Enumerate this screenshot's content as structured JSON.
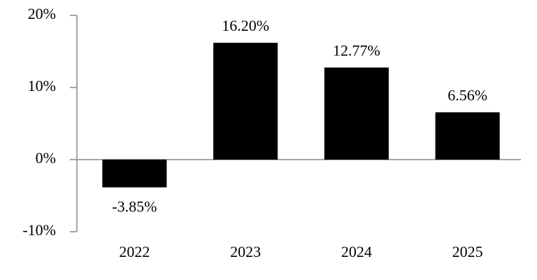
{
  "chart_data": {
    "type": "bar",
    "categories": [
      "2022",
      "2023",
      "2024",
      "2025"
    ],
    "values": [
      -3.85,
      16.2,
      12.77,
      6.56
    ],
    "value_labels": [
      "-3.85%",
      "16.20%",
      "12.77%",
      "6.56%"
    ],
    "color": "#000000",
    "ylim": [
      -10,
      20
    ],
    "yticks": [
      {
        "value": -10,
        "label": "-10%"
      },
      {
        "value": 0,
        "label": "0%"
      },
      {
        "value": 10,
        "label": "10%"
      },
      {
        "value": 20,
        "label": "20%"
      }
    ],
    "grid": false
  }
}
